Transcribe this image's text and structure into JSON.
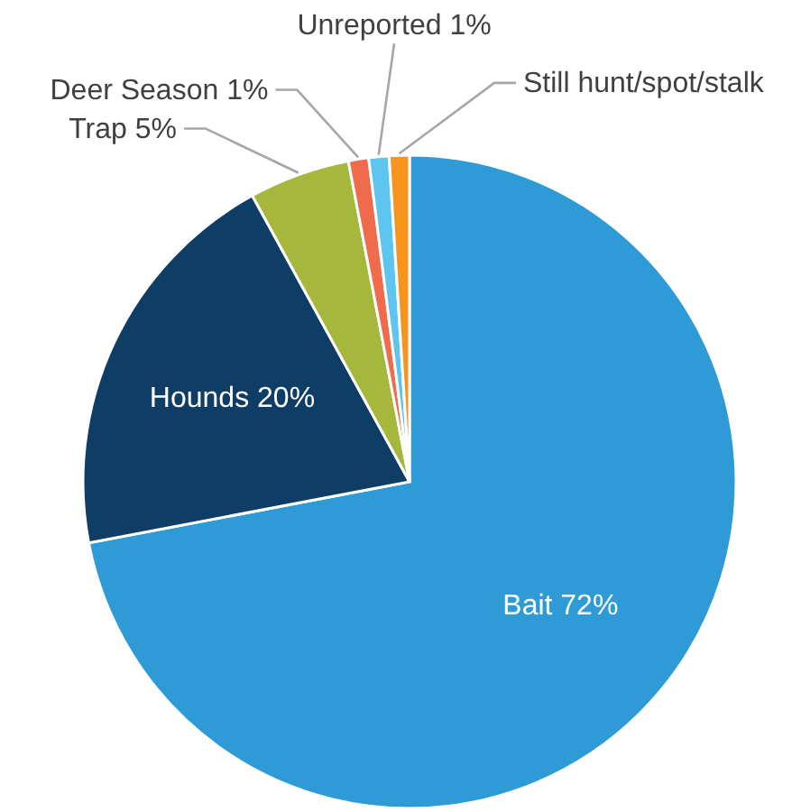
{
  "chart_data": {
    "type": "pie",
    "categories": [
      "Bait",
      "Hounds",
      "Trap",
      "Deer Season",
      "Unreported",
      "Still hunt/spot/stalk"
    ],
    "values": [
      72,
      20,
      5,
      1,
      1,
      1
    ],
    "colors": [
      "#2e9bd6",
      "#0e3d66",
      "#a5b83b",
      "#ef6b4c",
      "#5ec5f0",
      "#f7941d"
    ],
    "value_labels": [
      "72%",
      "20%",
      "5%",
      "1%",
      "1%",
      null
    ]
  }
}
